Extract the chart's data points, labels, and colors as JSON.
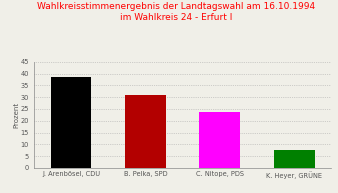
{
  "title_line1": "Wahlkreisstimmenergebnis der Landtagswahl am 16.10.1994",
  "title_line2": "im Wahlkreis 24 - Erfurt I",
  "title_color": "#FF0000",
  "ylabel": "Prozent",
  "categories": [
    "J. Arenbösel, CDU",
    "B. Pelka, SPD",
    "C. Nitope, PDS",
    "K. Heyer, GRÜNE"
  ],
  "values": [
    38.5,
    31.0,
    23.5,
    7.5
  ],
  "bar_colors": [
    "#000000",
    "#B30000",
    "#FF00FF",
    "#008000"
  ],
  "ylim": [
    0,
    45
  ],
  "yticks": [
    0,
    5,
    10,
    15,
    20,
    25,
    30,
    35,
    40,
    45
  ],
  "background_color": "#F0EFE8",
  "grid_color": "#AAAAAA",
  "title_fontsize": 6.5,
  "label_fontsize": 4.8,
  "ylabel_fontsize": 5.0
}
